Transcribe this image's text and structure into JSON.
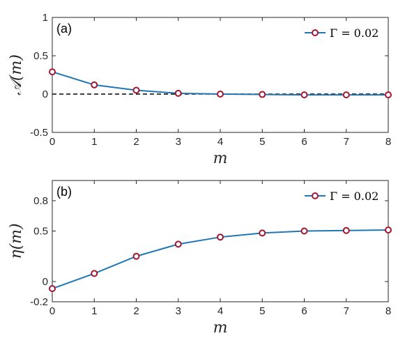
{
  "chart_data": [
    {
      "type": "line",
      "panel_label": "(a)",
      "xlabel": "m",
      "ylabel": "𝒜(m)",
      "x": [
        0,
        1,
        2,
        3,
        4,
        5,
        6,
        7,
        8
      ],
      "xlim": [
        0,
        8
      ],
      "ylim": [
        -0.5,
        1
      ],
      "xticks": [
        "0",
        "1",
        "2",
        "3",
        "4",
        "5",
        "6",
        "7",
        "8"
      ],
      "yticks": [
        {
          "value": -0.5,
          "label": "-0.5"
        },
        {
          "value": 0,
          "label": "0"
        },
        {
          "value": 0.5,
          "label": "0.5"
        },
        {
          "value": 1,
          "label": "1"
        }
      ],
      "series": [
        {
          "name": "Γ = 0.02",
          "values": [
            0.29,
            0.12,
            0.05,
            0.01,
            0.0,
            -0.005,
            -0.01,
            -0.01,
            -0.01
          ]
        }
      ],
      "reference_line": {
        "y": 0,
        "style": "dashed",
        "color": "#000000"
      },
      "legend_position": "top-right",
      "grid": false,
      "colors": {
        "line": "#1f77b4",
        "marker_edge": "#a2142f",
        "marker_fill": "#ffffff"
      }
    },
    {
      "type": "line",
      "panel_label": "(b)",
      "xlabel": "m",
      "ylabel": "η(m)",
      "x": [
        0,
        1,
        2,
        3,
        4,
        5,
        6,
        7,
        8
      ],
      "xlim": [
        0,
        8
      ],
      "ylim": [
        -0.2,
        1
      ],
      "xticks": [
        "0",
        "1",
        "2",
        "3",
        "4",
        "5",
        "6",
        "7",
        "8"
      ],
      "yticks": [
        {
          "value": -0.2,
          "label": "-0.2"
        },
        {
          "value": 0,
          "label": "0"
        },
        {
          "value": 0.5,
          "label": "0.5"
        },
        {
          "value": 0.8,
          "label": "0.8"
        }
      ],
      "series": [
        {
          "name": "Γ = 0.02",
          "values": [
            -0.07,
            0.08,
            0.25,
            0.37,
            0.44,
            0.48,
            0.5,
            0.505,
            0.51
          ]
        }
      ],
      "legend_position": "top-right",
      "grid": false,
      "colors": {
        "line": "#1f77b4",
        "marker_edge": "#a2142f",
        "marker_fill": "#ffffff"
      }
    }
  ]
}
